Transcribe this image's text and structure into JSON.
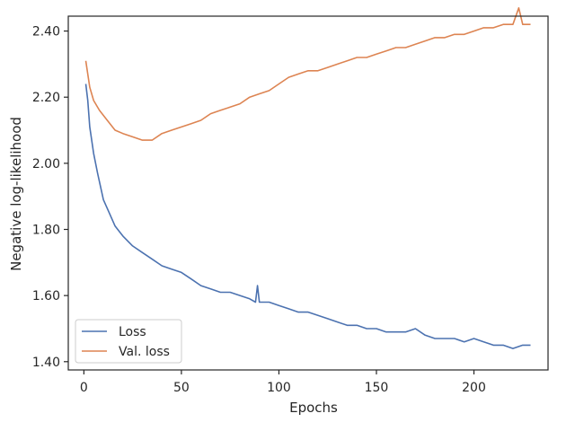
{
  "chart_data": {
    "type": "line",
    "xlabel": "Epochs",
    "ylabel": "Negative log-likelihood",
    "xlim": [
      -8,
      238
    ],
    "ylim": [
      1.375,
      2.445
    ],
    "x_ticks": [
      0,
      50,
      100,
      150,
      200
    ],
    "x_tick_labels": [
      "0",
      "50",
      "100",
      "150",
      "200"
    ],
    "y_ticks": [
      1.4,
      1.6,
      1.8,
      2.0,
      2.2,
      2.4
    ],
    "y_tick_labels": [
      "1.40",
      "1.60",
      "1.80",
      "2.00",
      "2.20",
      "2.40"
    ],
    "grid": false,
    "legend_position": "lower-left",
    "series": [
      {
        "name": "Loss",
        "color": "#4c72b0",
        "x": [
          1,
          2,
          3,
          5,
          7,
          10,
          13,
          16,
          20,
          25,
          30,
          35,
          40,
          45,
          50,
          55,
          60,
          65,
          70,
          75,
          80,
          85,
          88,
          89,
          90,
          95,
          100,
          105,
          110,
          115,
          120,
          125,
          130,
          135,
          140,
          145,
          150,
          155,
          160,
          165,
          170,
          175,
          180,
          185,
          190,
          195,
          200,
          205,
          210,
          215,
          220,
          225,
          229
        ],
        "values": [
          2.24,
          2.19,
          2.11,
          2.03,
          1.97,
          1.89,
          1.85,
          1.81,
          1.78,
          1.75,
          1.73,
          1.71,
          1.69,
          1.68,
          1.67,
          1.65,
          1.63,
          1.62,
          1.61,
          1.61,
          1.6,
          1.59,
          1.58,
          1.63,
          1.58,
          1.58,
          1.57,
          1.56,
          1.55,
          1.55,
          1.54,
          1.53,
          1.52,
          1.51,
          1.51,
          1.5,
          1.5,
          1.49,
          1.49,
          1.49,
          1.5,
          1.48,
          1.47,
          1.47,
          1.47,
          1.46,
          1.47,
          1.46,
          1.45,
          1.45,
          1.44,
          1.45,
          1.45
        ]
      },
      {
        "name": "Val. loss",
        "color": "#dd8452",
        "x": [
          1,
          3,
          5,
          8,
          12,
          16,
          20,
          25,
          30,
          35,
          40,
          45,
          50,
          55,
          60,
          65,
          70,
          75,
          80,
          85,
          90,
          95,
          100,
          105,
          110,
          115,
          120,
          125,
          130,
          135,
          140,
          145,
          150,
          155,
          160,
          165,
          170,
          175,
          180,
          185,
          190,
          195,
          200,
          205,
          210,
          215,
          220,
          223,
          225,
          229
        ],
        "values": [
          2.31,
          2.23,
          2.19,
          2.16,
          2.13,
          2.1,
          2.09,
          2.08,
          2.07,
          2.07,
          2.09,
          2.1,
          2.11,
          2.12,
          2.13,
          2.15,
          2.16,
          2.17,
          2.18,
          2.2,
          2.21,
          2.22,
          2.24,
          2.26,
          2.27,
          2.28,
          2.28,
          2.29,
          2.3,
          2.31,
          2.32,
          2.32,
          2.33,
          2.34,
          2.35,
          2.35,
          2.36,
          2.37,
          2.38,
          2.38,
          2.39,
          2.39,
          2.4,
          2.41,
          2.41,
          2.42,
          2.42,
          2.47,
          2.42,
          2.42
        ]
      }
    ]
  }
}
